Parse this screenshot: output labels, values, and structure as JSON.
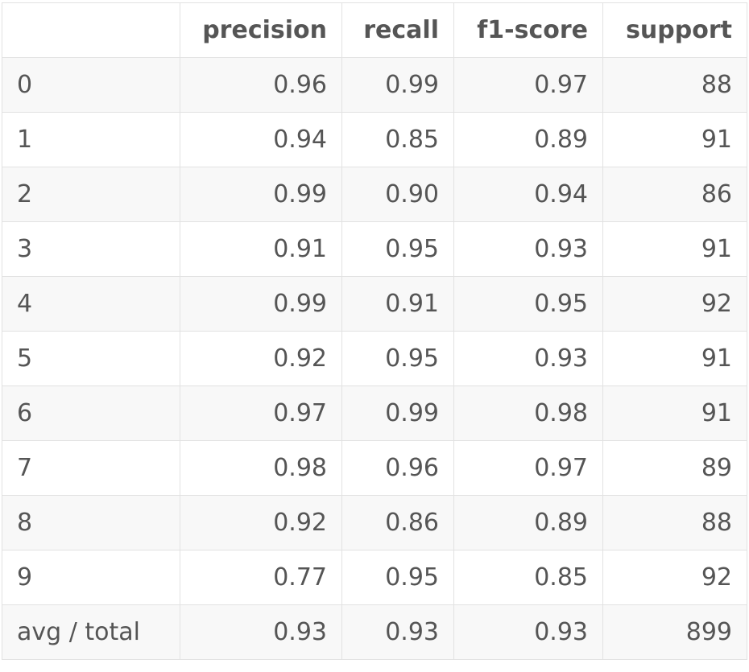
{
  "table": {
    "headers": [
      "",
      "precision",
      "recall",
      "f1-score",
      "support"
    ],
    "rows": [
      {
        "label": "0",
        "precision": "0.96",
        "recall": "0.99",
        "f1": "0.97",
        "support": "88"
      },
      {
        "label": "1",
        "precision": "0.94",
        "recall": "0.85",
        "f1": "0.89",
        "support": "91"
      },
      {
        "label": "2",
        "precision": "0.99",
        "recall": "0.90",
        "f1": "0.94",
        "support": "86"
      },
      {
        "label": "3",
        "precision": "0.91",
        "recall": "0.95",
        "f1": "0.93",
        "support": "91"
      },
      {
        "label": "4",
        "precision": "0.99",
        "recall": "0.91",
        "f1": "0.95",
        "support": "92"
      },
      {
        "label": "5",
        "precision": "0.92",
        "recall": "0.95",
        "f1": "0.93",
        "support": "91"
      },
      {
        "label": "6",
        "precision": "0.97",
        "recall": "0.99",
        "f1": "0.98",
        "support": "91"
      },
      {
        "label": "7",
        "precision": "0.98",
        "recall": "0.96",
        "f1": "0.97",
        "support": "89"
      },
      {
        "label": "8",
        "precision": "0.92",
        "recall": "0.86",
        "f1": "0.89",
        "support": "88"
      },
      {
        "label": "9",
        "precision": "0.77",
        "recall": "0.95",
        "f1": "0.85",
        "support": "92"
      },
      {
        "label": "avg / total",
        "precision": "0.93",
        "recall": "0.93",
        "f1": "0.93",
        "support": "899"
      }
    ]
  }
}
